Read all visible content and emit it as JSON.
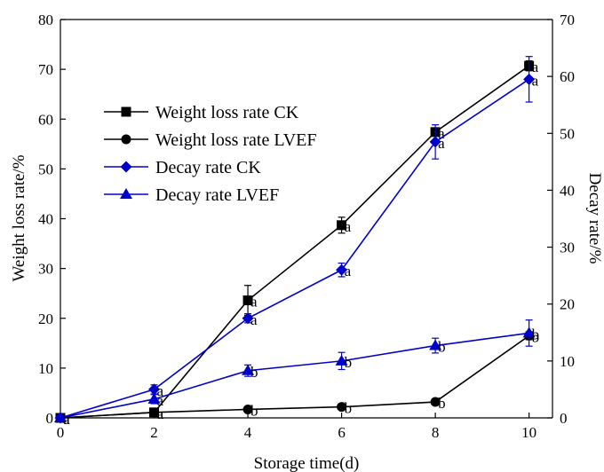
{
  "chart_data": {
    "type": "line",
    "xlabel": "Storage time(d)",
    "ylabel": "Weight loss rate/%",
    "y2label": "Decay rate/%",
    "x": [
      0,
      2,
      4,
      6,
      8,
      10
    ],
    "xlim": [
      0,
      10.5
    ],
    "ylim": [
      0,
      80
    ],
    "y2lim": [
      0,
      70
    ],
    "xticks": [
      "0",
      "2",
      "4",
      "6",
      "8",
      "10"
    ],
    "yticks": [
      "0",
      "10",
      "20",
      "30",
      "40",
      "50",
      "60",
      "70",
      "80"
    ],
    "y2ticks": [
      "0",
      "10",
      "20",
      "30",
      "40",
      "50",
      "60",
      "70"
    ],
    "grid": false,
    "legend_position": "upper-left",
    "series": [
      {
        "name": "Weight loss rate CK",
        "axis": "left",
        "color": "#000000",
        "marker": "square",
        "values": [
          0,
          1.1,
          23.6,
          38.7,
          57.4,
          70.7
        ],
        "errors": [
          0,
          0.3,
          3.0,
          1.6,
          0.8,
          1.0
        ],
        "labels": [
          "a",
          "a",
          "a",
          "a",
          "a",
          "a"
        ]
      },
      {
        "name": "Weight loss rate LVEF",
        "axis": "left",
        "color": "#000000",
        "marker": "circle",
        "values": [
          0,
          1.1,
          1.7,
          2.2,
          3.2,
          16.5
        ],
        "errors": [
          0,
          0.2,
          0.2,
          0.2,
          0.2,
          0.8
        ],
        "labels": [
          "a",
          "a",
          "b",
          "b",
          "b",
          "b"
        ]
      },
      {
        "name": "Decay rate CK",
        "axis": "right",
        "color": "#0000cc",
        "marker": "diamond",
        "values": [
          0,
          5.0,
          17.5,
          26.0,
          48.5,
          59.5
        ],
        "errors": [
          0,
          0.8,
          0.8,
          1.2,
          3.0,
          4.0
        ],
        "labels": [
          "a",
          "a",
          "a",
          "a",
          "a",
          "a"
        ]
      },
      {
        "name": "Decay rate LVEF",
        "axis": "right",
        "color": "#0000cc",
        "marker": "triangle",
        "values": [
          0,
          3.3,
          8.3,
          10.0,
          12.7,
          14.9
        ],
        "errors": [
          0,
          0.8,
          1.0,
          1.5,
          1.3,
          2.3
        ],
        "labels": [
          "a",
          "a",
          "b",
          "b",
          "b",
          "b"
        ]
      }
    ]
  }
}
